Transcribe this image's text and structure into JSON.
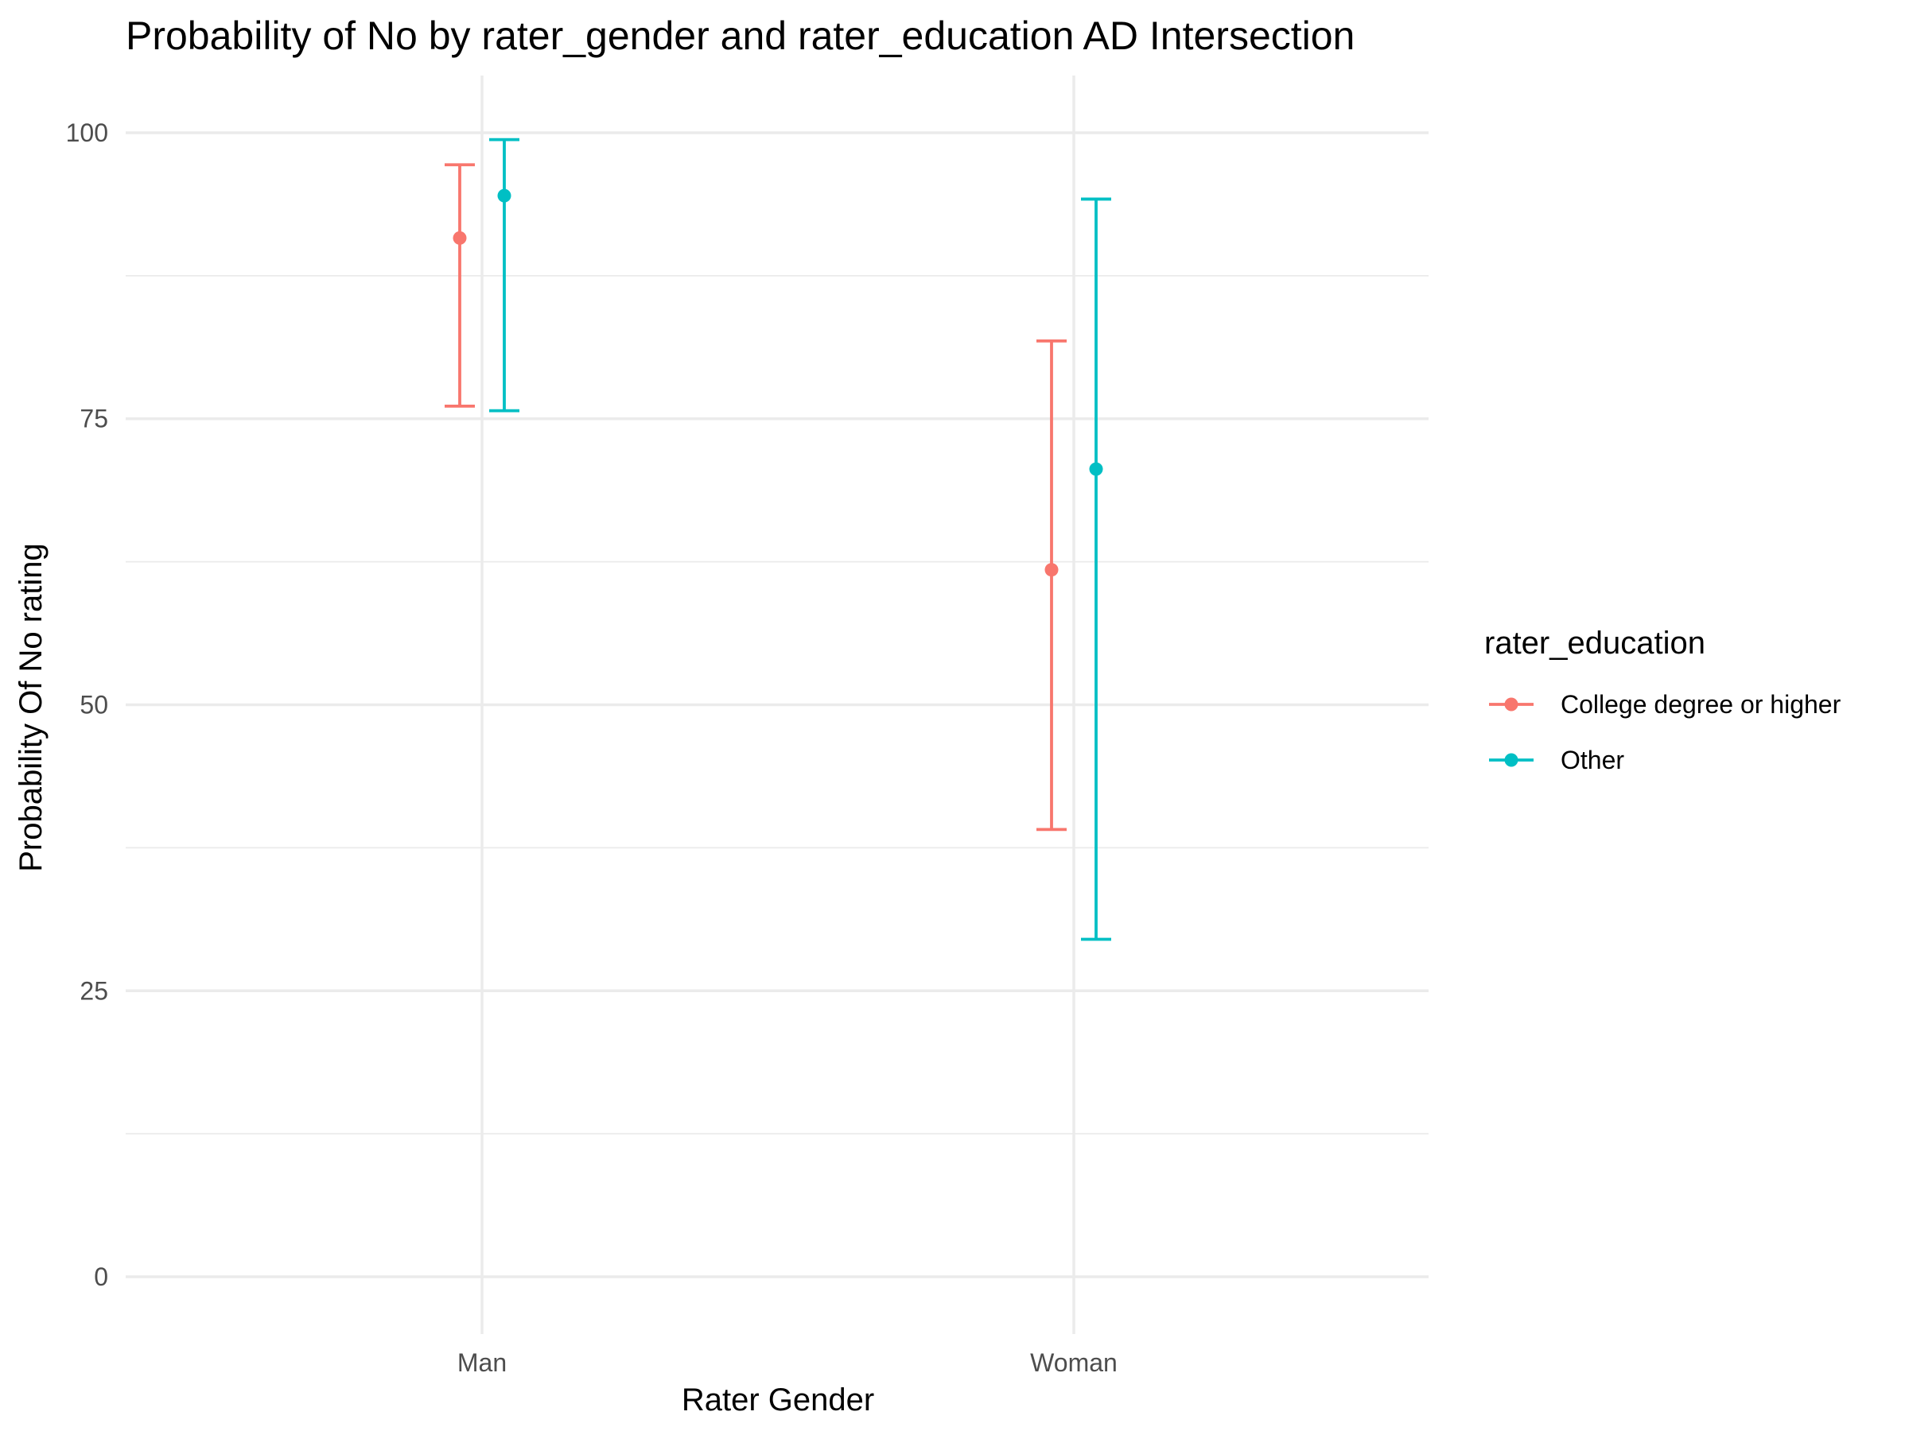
{
  "chart_data": {
    "type": "errorbar",
    "title": "Probability of No by rater_gender and  rater_education  AD Intersection",
    "xlabel": "Rater Gender",
    "ylabel": "Probability Of No rating",
    "categories": [
      "Man",
      "Woman"
    ],
    "ylim": [
      -5,
      105
    ],
    "yticks": [
      0,
      25,
      50,
      75,
      100
    ],
    "grid": true,
    "legend": {
      "title": "rater_education",
      "position": "right"
    },
    "series": [
      {
        "name": "College degree or higher",
        "color": "#F8766D",
        "points": [
          {
            "category": "Man",
            "value": 90.8,
            "lower": 76.1,
            "upper": 97.2
          },
          {
            "category": "Woman",
            "value": 61.8,
            "lower": 39.1,
            "upper": 81.8
          }
        ]
      },
      {
        "name": "Other",
        "color": "#00BFC4",
        "points": [
          {
            "category": "Man",
            "value": 94.5,
            "lower": 75.7,
            "upper": 99.4
          },
          {
            "category": "Woman",
            "value": 70.6,
            "lower": 29.5,
            "upper": 94.2
          }
        ]
      }
    ]
  }
}
